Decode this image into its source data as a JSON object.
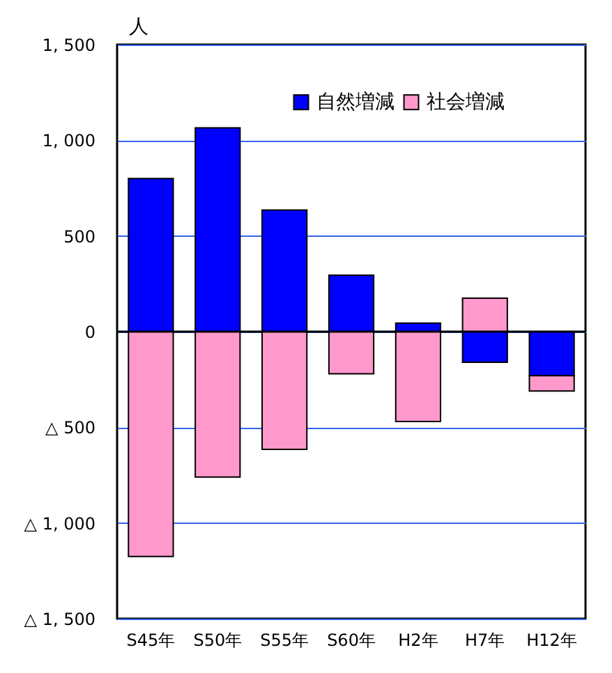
{
  "chart_data": {
    "type": "bar",
    "stacked": true,
    "ylabel": "人",
    "categories": [
      "S45年",
      "S50年",
      "S55年",
      "S60年",
      "H2年",
      "H7年",
      "H12年"
    ],
    "series": [
      {
        "name": "自然増減",
        "color": "#0000ff",
        "values": [
          800,
          1065,
          635,
          295,
          45,
          -160,
          -230
        ]
      },
      {
        "name": "社会増減",
        "color": "#ff99cc",
        "values": [
          -1175,
          -760,
          -615,
          -220,
          -470,
          175,
          -80
        ]
      }
    ],
    "ylim": [
      -1500,
      1500
    ],
    "yticks": [
      {
        "value": -1500,
        "label": "△ 1, 500"
      },
      {
        "value": -1000,
        "label": "△ 1, 000"
      },
      {
        "value": -500,
        "label": "△ 500"
      },
      0,
      500,
      {
        "value": 1000,
        "label": "1, 000"
      },
      {
        "value": 1500,
        "label": "1, 500"
      }
    ],
    "ref_lines": [
      {
        "axis": "y",
        "value": 0,
        "color": "#000000"
      }
    ],
    "grid": "y",
    "legend": "top right"
  }
}
